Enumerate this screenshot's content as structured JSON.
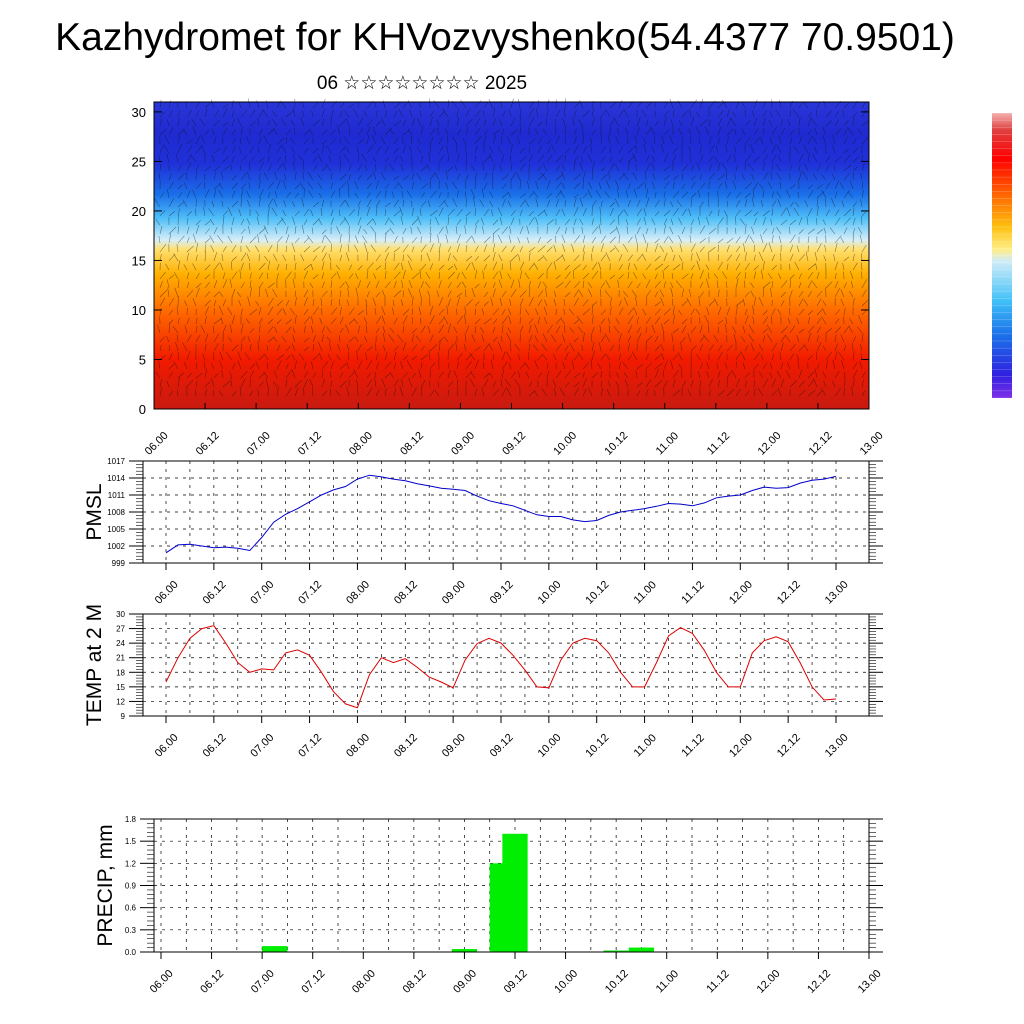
{
  "title": "Kazhydromet for KHVozvyshenko(54.4377 70.9501)",
  "subtitle": "06 ☆☆☆☆☆☆☆☆ 2025",
  "chart_data": [
    {
      "type": "heatmap",
      "name": "vertical cross-section",
      "x_ticks": [
        "06.00",
        "06.12",
        "07.00",
        "07.12",
        "08.00",
        "08.12",
        "09.00",
        "09.12",
        "10.00",
        "10.12",
        "11.00",
        "11.12",
        "12.00",
        "12.12",
        "13.00"
      ],
      "y_ticks": [
        "0",
        "5",
        "10",
        "15",
        "20",
        "25",
        "30"
      ],
      "ylim": [
        0,
        31
      ],
      "colormap": [
        "#ffffff",
        "#f0a0a0",
        "#e03030",
        "#ff0000",
        "#ff5000",
        "#ff9a00",
        "#ffcf20",
        "#ffef8a",
        "#bfe8f8",
        "#40c0f8",
        "#1a70e8",
        "#2030e0",
        "#4020e0",
        "#8030e8"
      ]
    },
    {
      "type": "line",
      "ylabel": "PMSL",
      "y_ticks": [
        "999",
        "1002",
        "1005",
        "1008",
        "1011",
        "1014",
        "1017"
      ],
      "ylim": [
        999,
        1017
      ],
      "x_ticks": [
        "06.00",
        "06.12",
        "07.00",
        "07.12",
        "08.00",
        "08.12",
        "09.00",
        "09.12",
        "10.00",
        "10.12",
        "11.00",
        "11.12",
        "12.00",
        "12.12",
        "13.00"
      ],
      "color": "#0000cc",
      "x": [
        0,
        3,
        6,
        9,
        12,
        15,
        18,
        21,
        24,
        27,
        30,
        33,
        36,
        39,
        42,
        45,
        48,
        51,
        54,
        57,
        60,
        63,
        66,
        69,
        72,
        75,
        78,
        81,
        84,
        87,
        90,
        93,
        96,
        99,
        102,
        105,
        108,
        111,
        114,
        117,
        120,
        123,
        126,
        129,
        132,
        135,
        138,
        141,
        144,
        147,
        150,
        153,
        156,
        159,
        162,
        165,
        168
      ],
      "values": [
        1000.8,
        1002.2,
        1002.3,
        1002.0,
        1001.7,
        1001.8,
        1001.6,
        1001.2,
        1003.5,
        1006.2,
        1007.6,
        1008.6,
        1009.8,
        1011.0,
        1011.9,
        1012.5,
        1013.8,
        1014.5,
        1014.2,
        1013.8,
        1013.5,
        1013.0,
        1012.6,
        1012.2,
        1012.0,
        1011.8,
        1010.8,
        1010.0,
        1009.5,
        1009.1,
        1008.3,
        1007.5,
        1007.2,
        1007.2,
        1006.6,
        1006.3,
        1006.5,
        1007.4,
        1008.0,
        1008.3,
        1008.6,
        1009.0,
        1009.5,
        1009.4,
        1009.1,
        1009.6,
        1010.5,
        1010.8,
        1011.0,
        1011.8,
        1012.4,
        1012.2,
        1012.3,
        1013.1,
        1013.6,
        1013.8,
        1014.3
      ]
    },
    {
      "type": "line",
      "ylabel": "TEMP at 2 M",
      "y_ticks": [
        "9",
        "12",
        "15",
        "18",
        "21",
        "24",
        "27",
        "30"
      ],
      "ylim": [
        9,
        30
      ],
      "x_ticks": [
        "06.00",
        "06.12",
        "07.00",
        "07.12",
        "08.00",
        "08.12",
        "09.00",
        "09.12",
        "10.00",
        "10.12",
        "11.00",
        "11.12",
        "12.00",
        "12.12",
        "13.00"
      ],
      "color": "#dd0000",
      "x": [
        0,
        3,
        6,
        9,
        12,
        15,
        18,
        21,
        24,
        27,
        30,
        33,
        36,
        39,
        42,
        45,
        48,
        51,
        54,
        57,
        60,
        63,
        66,
        69,
        72,
        75,
        78,
        81,
        84,
        87,
        90,
        93,
        96,
        99,
        102,
        105,
        108,
        111,
        114,
        117,
        120,
        123,
        126,
        129,
        132,
        135,
        138,
        141,
        144,
        147,
        150,
        153,
        156,
        159,
        162,
        165,
        168
      ],
      "values": [
        16.0,
        21.0,
        25.0,
        27.0,
        27.6,
        24.0,
        20.0,
        18.0,
        18.7,
        18.5,
        22.0,
        22.6,
        21.5,
        18.0,
        14.0,
        11.5,
        10.7,
        17.5,
        21.0,
        20.0,
        20.8,
        19.0,
        17.0,
        16.0,
        14.8,
        20.5,
        23.9,
        25.0,
        24.0,
        21.5,
        18.5,
        15.0,
        14.8,
        20.5,
        24.0,
        25.0,
        24.5,
        22.0,
        18.0,
        15.0,
        15.0,
        20.0,
        25.5,
        27.2,
        26.0,
        22.5,
        18.0,
        15.0,
        15.0,
        22.0,
        24.5,
        25.3,
        24.3,
        20.0,
        15.0,
        12.3,
        12.5
      ]
    },
    {
      "type": "bar",
      "ylabel": "PRECIP, mm",
      "y_ticks": [
        "0.0",
        "0.3",
        "0.6",
        "0.9",
        "1.2",
        "1.5",
        "1.8"
      ],
      "ylim": [
        0,
        1.8
      ],
      "x_ticks": [
        "06.00",
        "06.12",
        "07.00",
        "07.12",
        "08.00",
        "08.12",
        "09.00",
        "09.12",
        "10.00",
        "10.12",
        "11.00",
        "11.12",
        "12.00",
        "12.12",
        "13.00"
      ],
      "color": "#00ee00",
      "x": [
        27,
        72,
        81,
        84,
        108,
        114
      ],
      "values": [
        0.08,
        0.04,
        1.2,
        1.6,
        0.02,
        0.06
      ]
    }
  ]
}
